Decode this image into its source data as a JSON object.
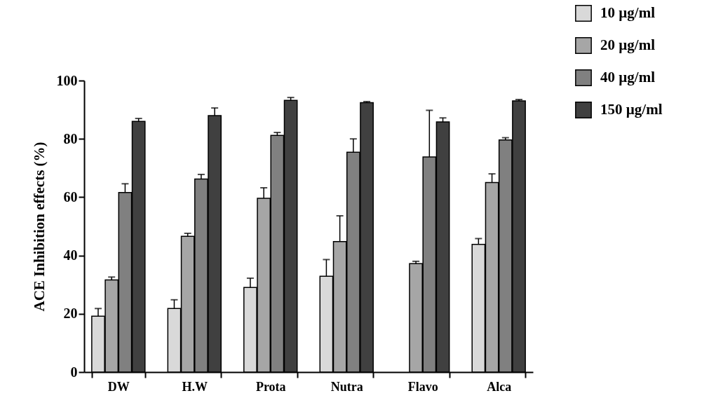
{
  "chart_data": {
    "type": "bar",
    "ylabel": "ACE Inhibition effects (%)",
    "categories": [
      "DW",
      "H.W",
      "Prota",
      "Nutra",
      "Flavo",
      "Alca"
    ],
    "series": [
      {
        "name": "10 µg/ml",
        "color": "#d9d9d9",
        "values": [
          19.2,
          21.8,
          29,
          32.9,
          null,
          43.8
        ],
        "errors": [
          2.6,
          3,
          3.2,
          5.7,
          null,
          2
        ]
      },
      {
        "name": "20 µg/ml",
        "color": "#a6a6a6",
        "values": [
          31.6,
          46.6,
          59.6,
          44.8,
          37.2,
          65
        ],
        "errors": [
          1,
          1,
          3.6,
          8.8,
          0.8,
          3
        ]
      },
      {
        "name": "40 µg/ml",
        "color": "#808080",
        "values": [
          61.6,
          66.2,
          81.2,
          75.4,
          73.8,
          79.6
        ],
        "errors": [
          3,
          1.6,
          1,
          4.6,
          16,
          0.8
        ]
      },
      {
        "name": "150 µg/ml",
        "color": "#404040",
        "values": [
          86,
          88,
          93.2,
          92.4,
          85.8,
          93
        ],
        "errors": [
          1,
          2.6,
          1,
          0.4,
          1.4,
          0.5
        ]
      }
    ],
    "ylim": [
      0,
      100
    ],
    "yticks": [
      0,
      20,
      40,
      60,
      80,
      100
    ],
    "grid": false,
    "legend": "top right"
  }
}
